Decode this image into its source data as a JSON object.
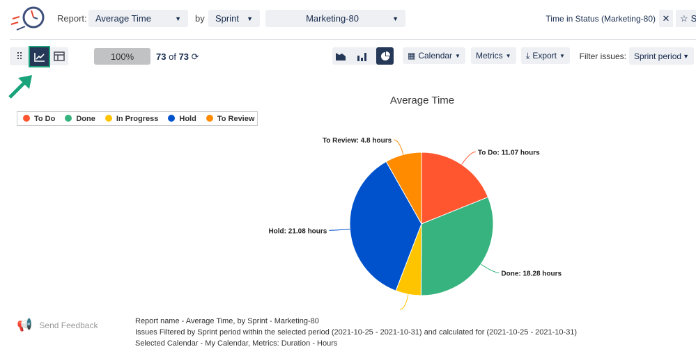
{
  "header": {
    "report_label": "Report:",
    "report_value": "Average Time",
    "by_label": "by",
    "by_value": "Sprint",
    "sprint_value": "Marketing-80",
    "tab_title": "Time in Status (Marketing-80)",
    "star_label": "S"
  },
  "toolbar": {
    "progress": "100%",
    "progress_value": 100,
    "count_current": "73",
    "count_of": "of",
    "count_total": "73",
    "calendar": "Calendar",
    "metrics": "Metrics",
    "export": "Export",
    "filter_label": "Filter issues:",
    "filter_value": "Sprint period",
    "active_view": "chart",
    "active_chart": "pie"
  },
  "colors": {
    "accent": "#253858",
    "highlight": "#1aa37a"
  },
  "chart_data": {
    "type": "pie",
    "title": "Average Time",
    "categories": [
      "To Do",
      "Done",
      "In Progress",
      "Hold",
      "To Review"
    ],
    "values": [
      11.07,
      18.28,
      3.35,
      21.08,
      4.8
    ],
    "colors": [
      "#ff5630",
      "#36b37e",
      "#ffc400",
      "#0052cc",
      "#ff8b00"
    ],
    "labels": [
      "To Do: 11.07 hours",
      "Done: 18.28 hours",
      "",
      "Hold: 21.08 hours",
      "To Review: 4.8 hours"
    ],
    "legend": "top-left"
  },
  "footer": {
    "feedback": "Send Feedback",
    "lines": [
      "Report name - Average Time, by Sprint - Marketing-80",
      "Issues Filtered by Sprint period within the selected period (2021-10-25 - 2021-10-31) and calculated for (2021-10-25 - 2021-10-31)",
      "Selected Calendar - My Calendar, Metrics: Duration - Hours"
    ]
  }
}
